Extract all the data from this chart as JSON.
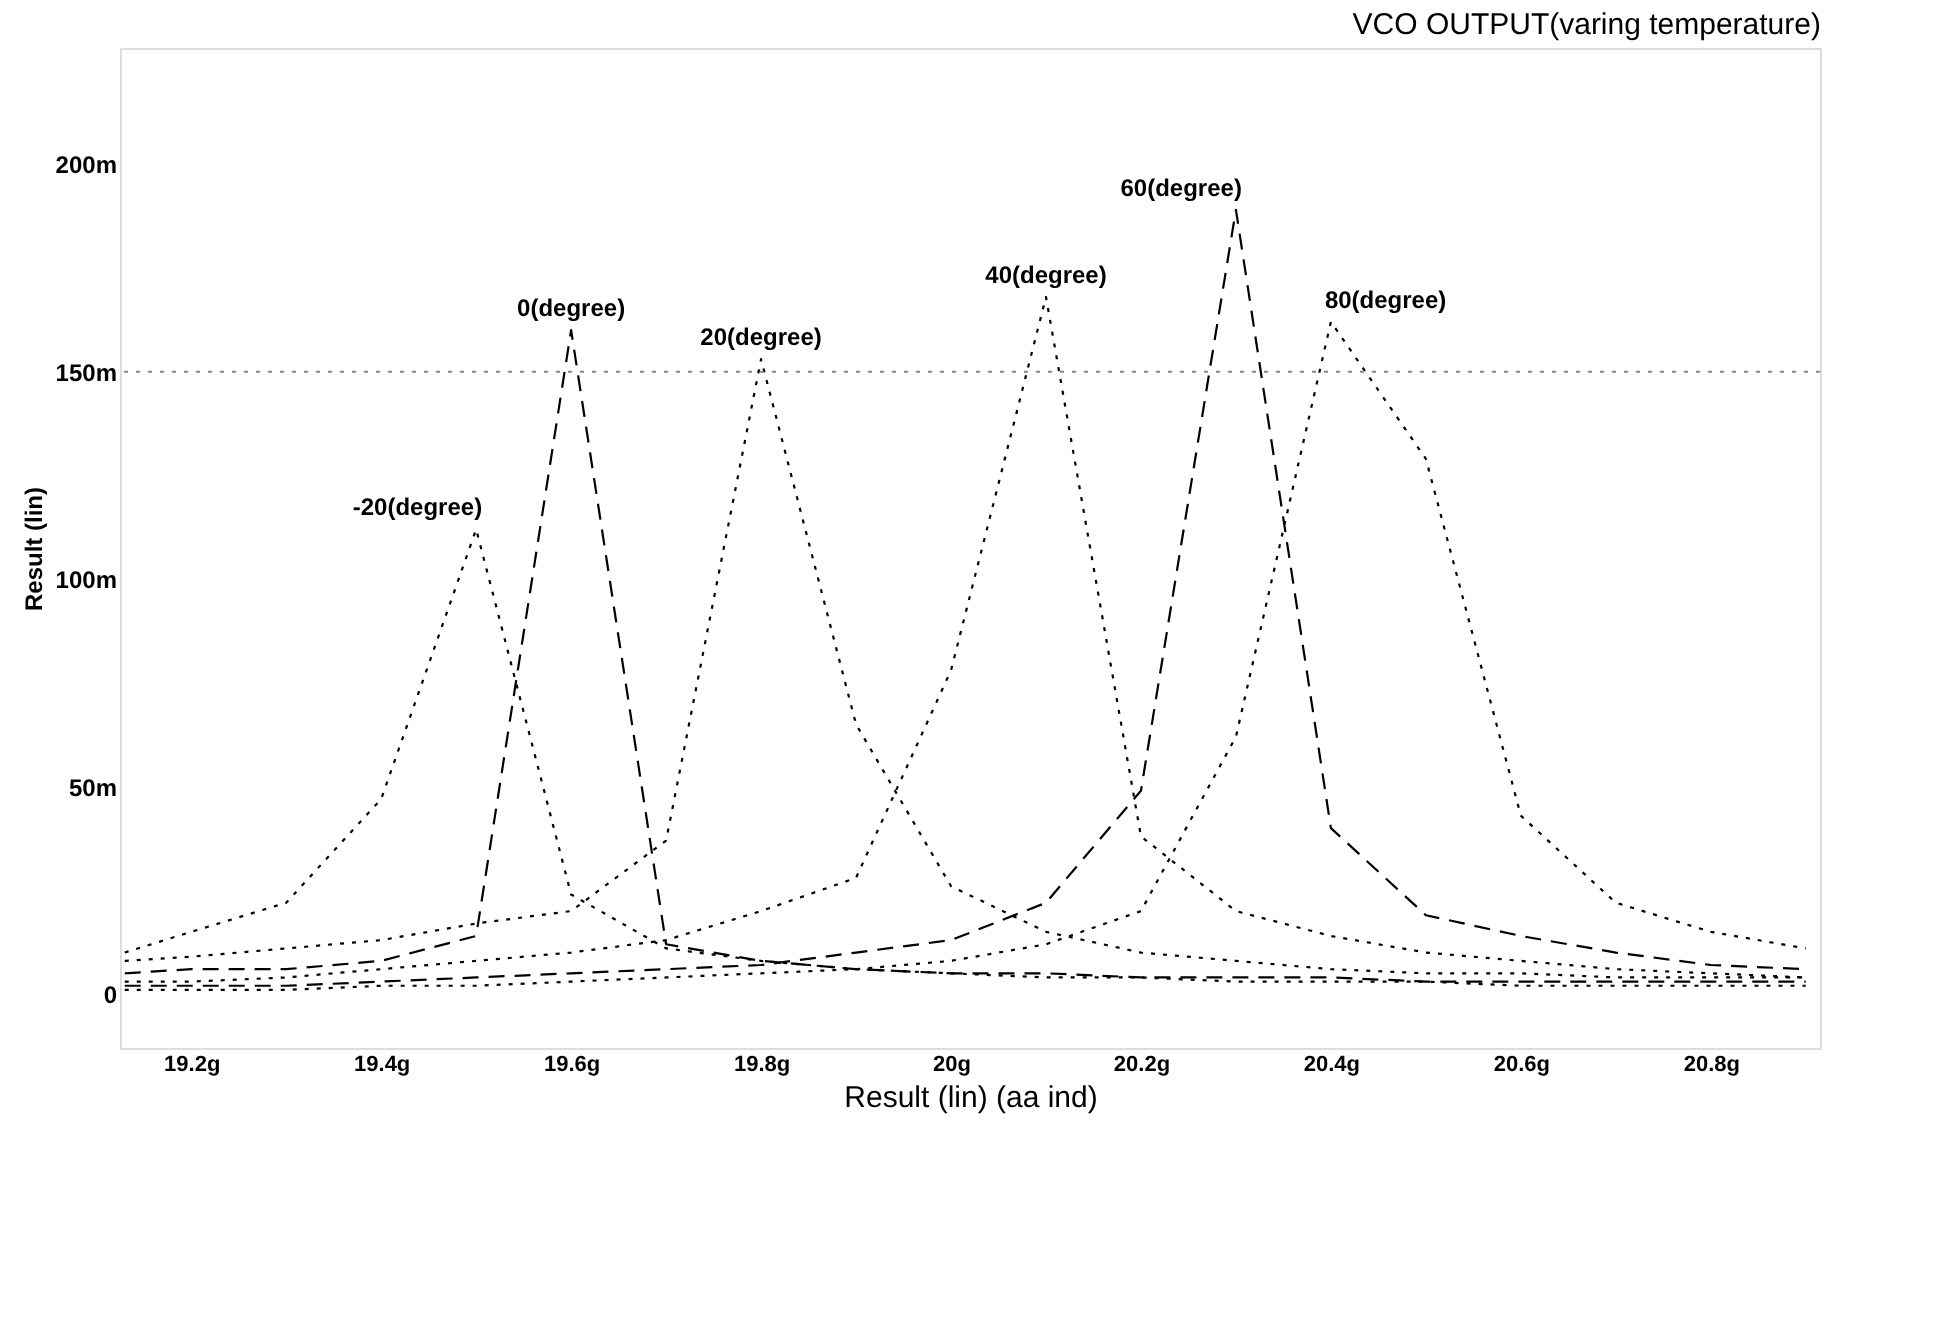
{
  "chart_data": {
    "type": "line",
    "title": "VCO OUTPUT(varing temperature)",
    "xlabel": "Result (lin) (aa  ind)",
    "ylabel": "Result (lin)",
    "x": [
      19.13,
      19.2,
      19.3,
      19.4,
      19.5,
      19.6,
      19.7,
      19.8,
      19.9,
      20.0,
      20.1,
      20.2,
      20.3,
      20.4,
      20.5,
      20.6,
      20.7,
      20.8,
      20.9
    ],
    "series": [
      {
        "name": "-20(degree)",
        "color": "#000000",
        "line_style": "dotted",
        "values": [
          10,
          15,
          22,
          47,
          112,
          24,
          11,
          8,
          6,
          5,
          4,
          4,
          3,
          3,
          3,
          2,
          2,
          2,
          2
        ]
      },
      {
        "name": "0(degree)",
        "color": "#000000",
        "line_style": "dashed",
        "values": [
          5,
          6,
          6,
          8,
          14,
          160,
          12,
          8,
          6,
          5,
          5,
          4,
          4,
          4,
          3,
          3,
          3,
          3,
          3
        ]
      },
      {
        "name": "20(degree)",
        "color": "#000000",
        "line_style": "dotted",
        "values": [
          8,
          9,
          11,
          13,
          17,
          20,
          37,
          153,
          65,
          26,
          15,
          10,
          8,
          6,
          5,
          5,
          4,
          4,
          4
        ]
      },
      {
        "name": "40(degree)",
        "color": "#000000",
        "line_style": "dotted",
        "values": [
          3,
          3,
          4,
          6,
          8,
          10,
          13,
          20,
          28,
          78,
          168,
          38,
          20,
          14,
          10,
          8,
          6,
          5,
          4
        ]
      },
      {
        "name": "60(degree)",
        "color": "#000000",
        "line_style": "dashed",
        "values": [
          2,
          2,
          2,
          3,
          4,
          5,
          6,
          7,
          10,
          13,
          22,
          49,
          189,
          40,
          19,
          14,
          10,
          7,
          6
        ]
      },
      {
        "name": "80(degree)",
        "color": "#000000",
        "line_style": "dotted",
        "values": [
          1,
          1,
          1,
          2,
          2,
          3,
          4,
          5,
          6,
          8,
          12,
          20,
          62,
          162,
          129,
          43,
          22,
          15,
          11
        ]
      }
    ],
    "xlim": [
      19.125,
      20.915
    ],
    "xticks": [
      {
        "value": 19.2,
        "label": "19.2g"
      },
      {
        "value": 19.4,
        "label": "19.4g"
      },
      {
        "value": 19.6,
        "label": "19.6g"
      },
      {
        "value": 19.8,
        "label": "19.8g"
      },
      {
        "value": 20,
        "label": "20g"
      },
      {
        "value": 20.2,
        "label": "20.2g"
      },
      {
        "value": 20.4,
        "label": "20.4g"
      },
      {
        "value": 20.6,
        "label": "20.6g"
      },
      {
        "value": 20.8,
        "label": "20.8g"
      }
    ],
    "ylim": [
      -13,
      228
    ],
    "yticks": [
      0,
      {
        "value": 50,
        "label": "50m"
      },
      {
        "value": 100,
        "label": "100m"
      },
      {
        "value": 150,
        "label": "150m"
      },
      {
        "value": 200,
        "label": "200m"
      }
    ],
    "ref_lines": [
      {
        "axis": "y",
        "value": 150,
        "color": "#888888",
        "line_style": "dotted"
      }
    ],
    "grid": false,
    "legend": false,
    "marker": "none"
  }
}
